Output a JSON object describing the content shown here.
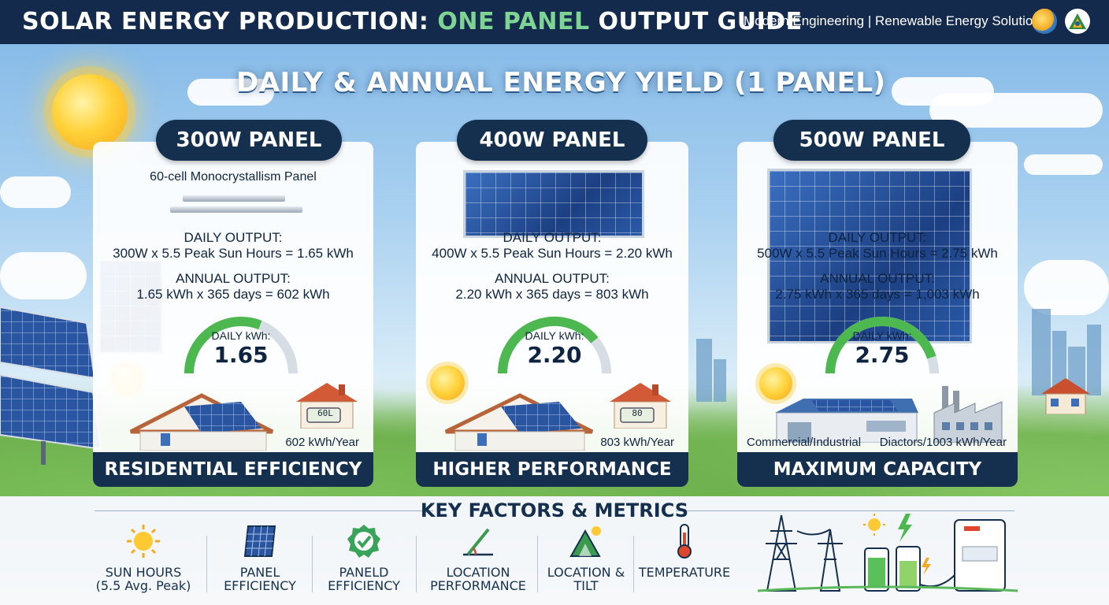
{
  "header": {
    "title_part1": "SOLAR ENERGY PRODUCTION: ",
    "title_highlight": "ONE PANEL",
    "title_part2": " OUTPUT GUIDE",
    "company": "Modern Engineering | Renewable Energy Solutions"
  },
  "section_heading": "DAILY & ANNUAL ENERGY YIELD (1 PANEL)",
  "cards": [
    {
      "title": "300W PANEL",
      "subtitle": "60-cell Monocrystallism Panel",
      "daily_label": "DAILY OUTPUT:",
      "daily_formula": "300W x 5.5 Peak Sun Hours = 1.65 kWh",
      "annual_label": "ANNUAL OUTPUT:",
      "annual_formula": "1.65 kWh x 365 days = 602 kWh",
      "gauge_label": "DAILY kWh:",
      "gauge_value": "1.65",
      "gauge_fill": 0.62,
      "meter_text": "60L",
      "yearly_note": "602 kWh/Year",
      "footer": "RESIDENTIAL EFFICIENCY"
    },
    {
      "title": "400W PANEL",
      "subtitle": "",
      "daily_label": "DAILY OUTPUT:",
      "daily_formula": "400W x 5.5 Peak Sun Hours = 2.20 kWh",
      "annual_label": "ANNUAL OUTPUT:",
      "annual_formula": "2.20 kWh x 365 days = 803 kWh",
      "gauge_label": "DAILY kWh:",
      "gauge_value": "2.20",
      "gauge_fill": 0.78,
      "meter_text": "80",
      "yearly_note": "803 kWh/Year",
      "footer": "HIGHER PERFORMANCE"
    },
    {
      "title": "500W PANEL",
      "subtitle": "",
      "daily_label": "DAILY OUTPUT:",
      "daily_formula": "500W x 5.5 Peak Sun Hours = 2.75 kWh",
      "annual_label": "ANNUAL OUTPUT:",
      "annual_formula": "2.75 kWh x 365 days = 1,003 kWh",
      "gauge_label": "DAILY kWh:",
      "gauge_value": "2.75",
      "gauge_fill": 0.9,
      "left_note": "Commercial/Industrial",
      "yearly_note": "Diactors/1003 kWh/Year",
      "footer": "MAXIMUM CAPACITY"
    }
  ],
  "key_factors": {
    "title": "KEY FACTORS & METRICS",
    "items": [
      {
        "label": "SUN HOURS\n(5.5 Avg. Peak)",
        "icon": "sun-icon"
      },
      {
        "label": "PANEL\nEFFICIENCY",
        "icon": "solar-panel-icon"
      },
      {
        "label": "PANELD\nEFFICIENCY",
        "icon": "check-badge-icon"
      },
      {
        "label": "LOCATION\nPERFORMANCE",
        "icon": "tilt-angle-icon"
      },
      {
        "label": "LOCATION &\nTILT",
        "icon": "mountain-sun-icon"
      },
      {
        "label": "TEMPERATURE",
        "icon": "thermometer-icon"
      }
    ]
  },
  "colors": {
    "navy": "#15304f",
    "highlight_green": "#7ed492",
    "gauge_green": "#4cb84f",
    "gauge_track": "#d6dde5"
  }
}
